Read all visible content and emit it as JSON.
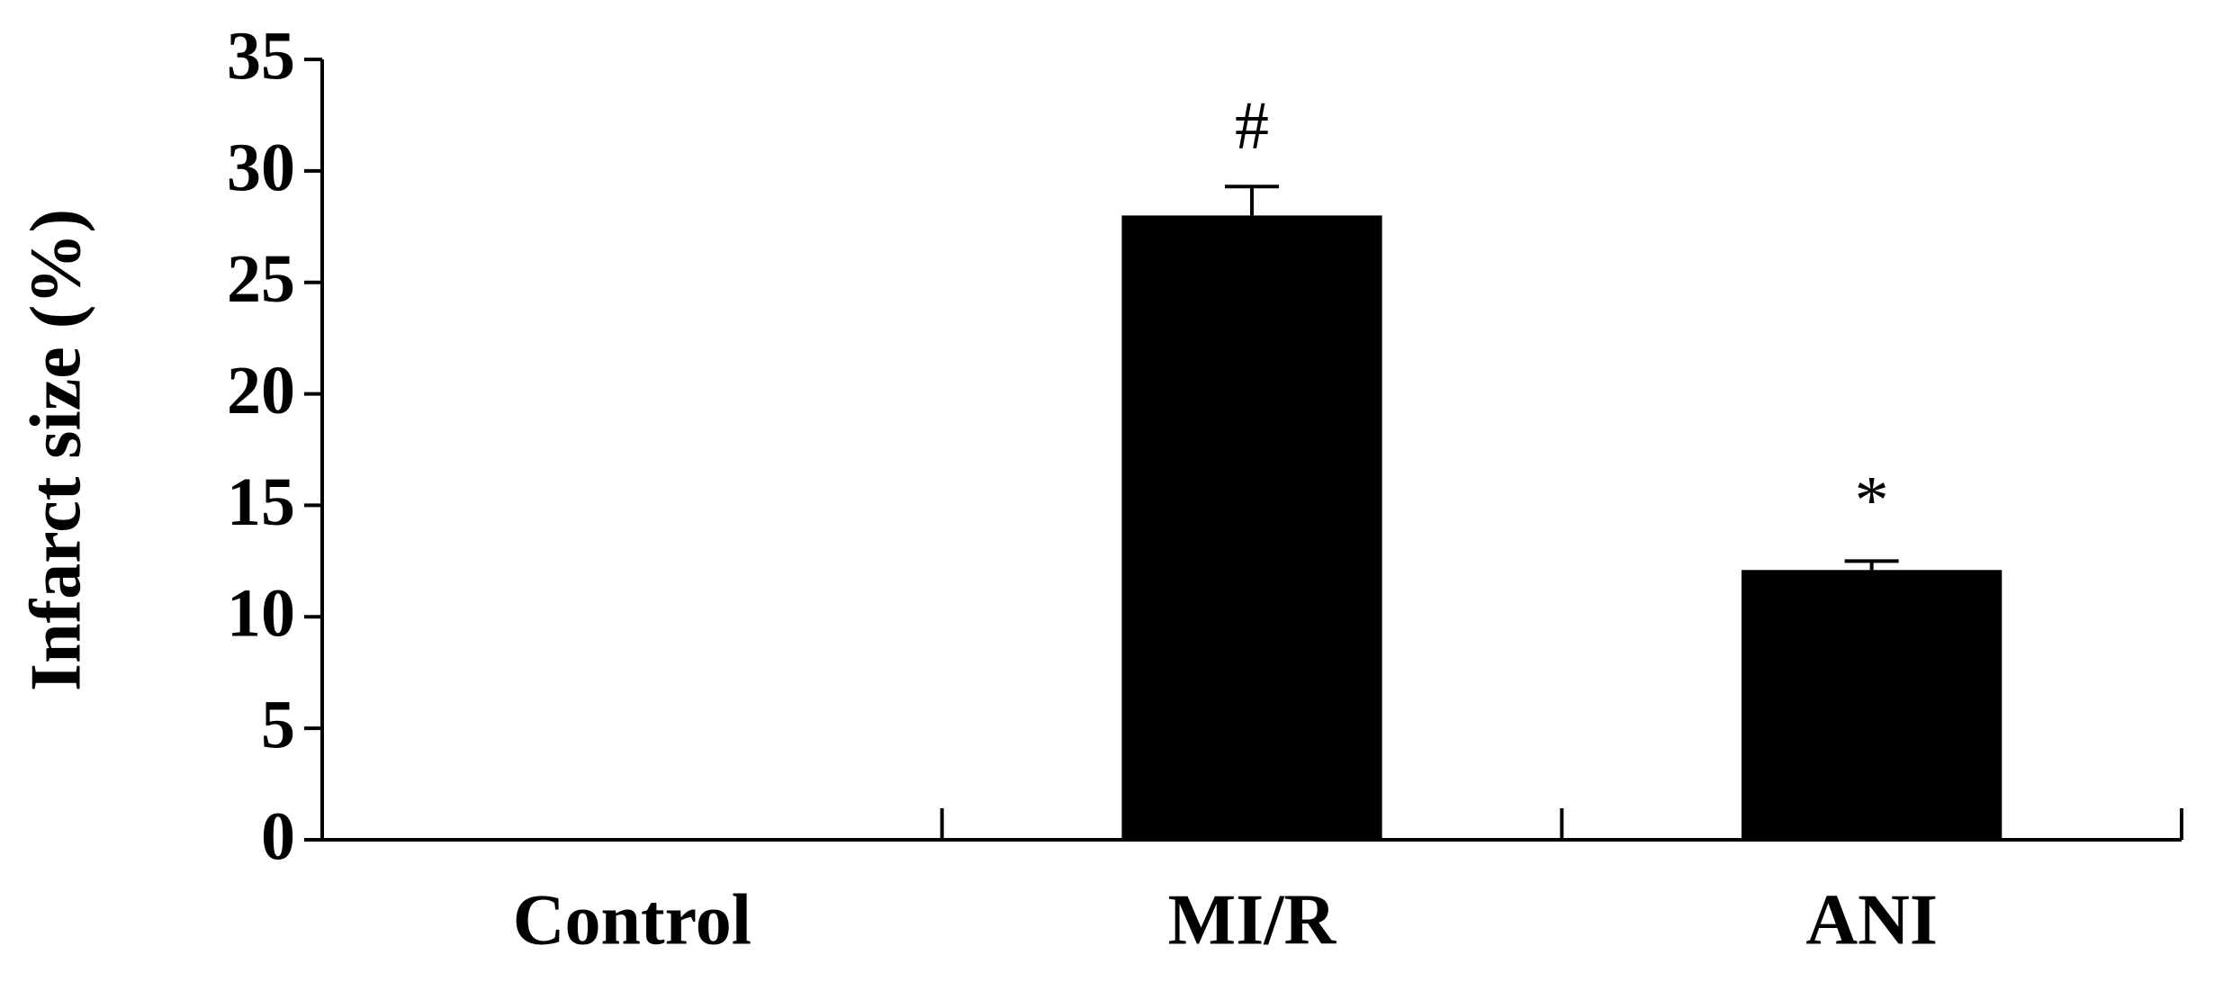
{
  "chart_data": {
    "type": "bar",
    "y_label": "Infarct size (%)",
    "categories": [
      "Control",
      "MI/R",
      "ANI"
    ],
    "values": [
      0,
      28,
      12.1
    ],
    "errors": [
      null,
      1.3,
      0.4
    ],
    "annotations": [
      null,
      "#",
      "*"
    ],
    "color": "#000000",
    "ylim": [
      0,
      35
    ],
    "yticks": [
      0,
      5,
      10,
      15,
      20,
      25,
      30,
      35
    ],
    "grid": false
  }
}
